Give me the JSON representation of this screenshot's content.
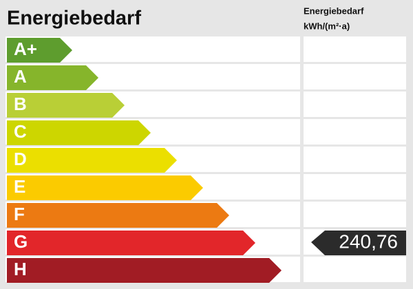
{
  "title": "Energiebedarf",
  "column_header": [
    "Energiebedarf",
    "kWh/(m²·a)"
  ],
  "rows": [
    {
      "label": "A+",
      "color": "#5e9d2e"
    },
    {
      "label": "A",
      "color": "#86b52b"
    },
    {
      "label": "B",
      "color": "#b9cf36"
    },
    {
      "label": "C",
      "color": "#cdd600"
    },
    {
      "label": "D",
      "color": "#ebdf00"
    },
    {
      "label": "E",
      "color": "#fbcb00"
    },
    {
      "label": "F",
      "color": "#ec7a12"
    },
    {
      "label": "G",
      "color": "#e2262a",
      "value": "240,76"
    },
    {
      "label": "H",
      "color": "#a11c24"
    }
  ]
}
